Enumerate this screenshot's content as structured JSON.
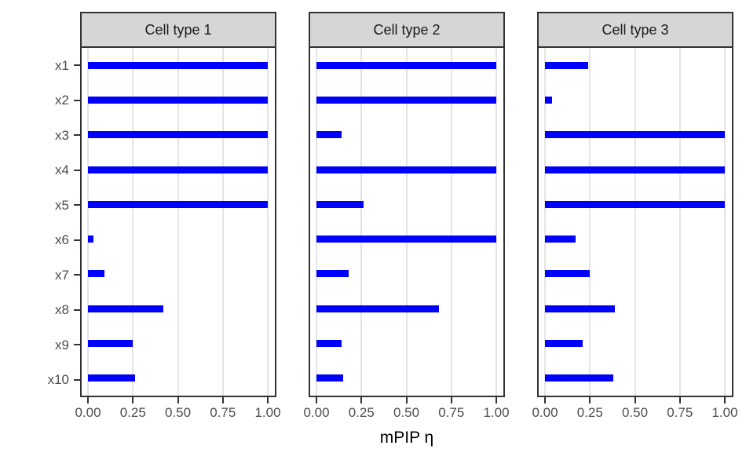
{
  "chart_data": {
    "type": "bar",
    "orientation": "horizontal",
    "facet_variable": "cell type",
    "xlabel": "mPIP η",
    "ylabel": "",
    "xlim": [
      0,
      1
    ],
    "x_ticks": [
      0.0,
      0.25,
      0.5,
      0.75,
      1.0
    ],
    "x_tick_labels": [
      "0.00",
      "0.25",
      "0.50",
      "0.75",
      "1.00"
    ],
    "categories": [
      "x1",
      "x2",
      "x3",
      "x4",
      "x5",
      "x6",
      "x7",
      "x8",
      "x9",
      "x10"
    ],
    "facets": [
      {
        "label": "Cell type 1",
        "values": [
          1.0,
          1.0,
          1.0,
          1.0,
          1.0,
          0.03,
          0.09,
          0.42,
          0.25,
          0.26
        ]
      },
      {
        "label": "Cell type 2",
        "values": [
          1.0,
          1.0,
          0.14,
          1.0,
          0.26,
          1.0,
          0.18,
          0.68,
          0.14,
          0.15
        ]
      },
      {
        "label": "Cell type 3",
        "values": [
          0.24,
          0.04,
          1.0,
          1.0,
          1.0,
          0.17,
          0.25,
          0.39,
          0.21,
          0.38
        ]
      }
    ],
    "legend": "none",
    "grid": "vertical-major-only",
    "colors": {
      "bar": "#0000ff",
      "strip_fill": "#d6d6d6",
      "panel_border": "#333333",
      "gridline": "#e4e4e4",
      "axis_text": "#4d4d4d",
      "tick": "#333333"
    }
  }
}
